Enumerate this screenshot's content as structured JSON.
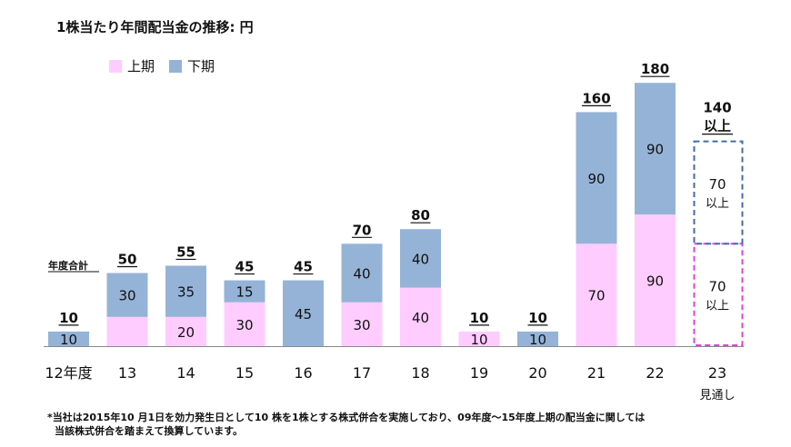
{
  "title": "1株当たり年間配当金の推移: 円",
  "legend": {
    "first_half": "上期",
    "second_half": "下期"
  },
  "colors": {
    "first_half": "#FFCCFF",
    "second_half": "#95B3D7",
    "estimate_second": "#3F6FA6",
    "estimate_first": "#E040E0"
  },
  "total_header": "年度合計",
  "estimate_sublabel": "見通し",
  "note_lines": [
    "*当社は2015年10 月1日を効力発生日として10 株を1株とする株式併合を実施しており、09年度～15年度上期の配当金に関しては",
    "当該株式併合を踏まえて換算しています。"
  ],
  "chart_data": {
    "type": "bar",
    "stacked": true,
    "categories": [
      "12年度",
      "13",
      "14",
      "15",
      "16",
      "17",
      "18",
      "19",
      "20",
      "21",
      "22",
      "23"
    ],
    "series": [
      {
        "name": "上期",
        "values": [
          0,
          20,
          20,
          30,
          0,
          30,
          40,
          10,
          0,
          70,
          90,
          70
        ],
        "labels": [
          "",
          "",
          "20",
          "30",
          "",
          "30",
          "40",
          "10",
          "",
          "70",
          "90",
          "70"
        ]
      },
      {
        "name": "下期",
        "values": [
          10,
          30,
          35,
          15,
          45,
          40,
          40,
          0,
          10,
          90,
          90,
          70
        ],
        "labels": [
          "10",
          "30",
          "35",
          "15",
          "45",
          "40",
          "40",
          "",
          "10",
          "90",
          "90",
          "70"
        ]
      }
    ],
    "totals": [
      "10",
      "50",
      "55",
      "45",
      "45",
      "70",
      "80",
      "10",
      "10",
      "160",
      "180",
      "140"
    ],
    "estimate_index": 11,
    "estimate_total_suffix": "以上",
    "estimate_segment_suffix": "以上",
    "ylim": [
      0,
      200
    ],
    "grid": false,
    "legend_position": "top-left"
  }
}
